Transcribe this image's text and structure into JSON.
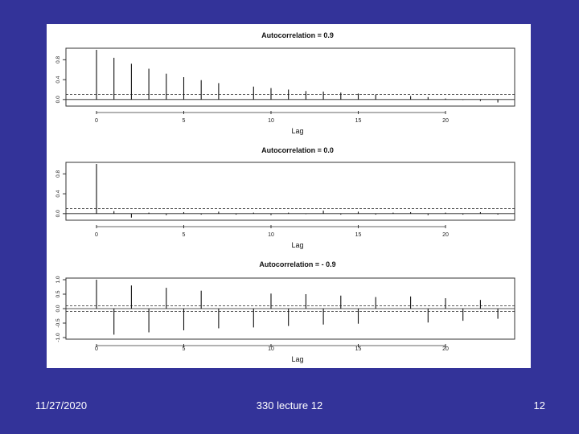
{
  "slide": {
    "background": "#333399",
    "date": "11/27/2020",
    "title": "330 lecture 12",
    "page": "12"
  },
  "chart_data": [
    {
      "type": "bar",
      "title": "Autocorrelation = 0.9",
      "xlabel": "Lag",
      "ylabel": "",
      "xticks": [
        "0",
        "5",
        "10",
        "15",
        "20"
      ],
      "yticks": [
        "0.0",
        "0.4",
        "0.8"
      ],
      "ylim": [
        -0.1,
        1.0
      ],
      "xlim": [
        0,
        24
      ],
      "conf_bound": 0.1,
      "x": [
        0,
        1,
        2,
        3,
        4,
        5,
        6,
        7,
        9,
        10,
        11,
        12,
        13,
        14,
        15,
        16,
        18,
        19,
        20,
        21,
        22,
        23
      ],
      "values": [
        1.0,
        0.84,
        0.72,
        0.62,
        0.52,
        0.45,
        0.39,
        0.33,
        0.26,
        0.23,
        0.2,
        0.17,
        0.16,
        0.14,
        0.12,
        0.1,
        0.07,
        0.05,
        0.02,
        -0.01,
        -0.03,
        -0.06
      ]
    },
    {
      "type": "bar",
      "title": "Autocorrelation = 0.0",
      "xlabel": "Lag",
      "ylabel": "",
      "xticks": [
        "0",
        "5",
        "10",
        "15",
        "20"
      ],
      "yticks": [
        "0.0",
        "0.4",
        "0.8"
      ],
      "ylim": [
        -0.1,
        1.0
      ],
      "xlim": [
        0,
        24
      ],
      "conf_bound": 0.1,
      "x": [
        0,
        1,
        2,
        3,
        4,
        5,
        6,
        7,
        8,
        9,
        10,
        11,
        12,
        13,
        14,
        15,
        16,
        17,
        18,
        19,
        20,
        21,
        22,
        23
      ],
      "values": [
        1.0,
        0.05,
        -0.08,
        0.02,
        -0.03,
        0.03,
        -0.02,
        0.04,
        -0.02,
        0.02,
        -0.03,
        0.02,
        -0.01,
        0.06,
        -0.02,
        0.04,
        -0.02,
        0.02,
        0.03,
        -0.03,
        0.02,
        -0.02,
        0.03,
        -0.02
      ]
    },
    {
      "type": "bar",
      "title": "Autocorrelation = - 0.9",
      "xlabel": "Lag",
      "ylabel": "",
      "xticks": [
        "0",
        "5",
        "10",
        "15",
        "20"
      ],
      "yticks": [
        "-1.0",
        "-0.5",
        "0.0",
        "0.5",
        "1.0"
      ],
      "ylim": [
        -1.0,
        1.0
      ],
      "xlim": [
        0,
        24
      ],
      "conf_bound": 0.1,
      "x": [
        0,
        1,
        2,
        3,
        4,
        5,
        6,
        7,
        9,
        10,
        11,
        12,
        13,
        14,
        15,
        16,
        18,
        19,
        20,
        21,
        22,
        23
      ],
      "values": [
        1.0,
        -0.9,
        0.8,
        -0.82,
        0.72,
        -0.75,
        0.62,
        -0.68,
        -0.65,
        0.52,
        -0.6,
        0.5,
        -0.55,
        0.45,
        -0.52,
        0.4,
        0.42,
        -0.48,
        0.36,
        -0.42,
        0.3,
        -0.35
      ]
    }
  ]
}
